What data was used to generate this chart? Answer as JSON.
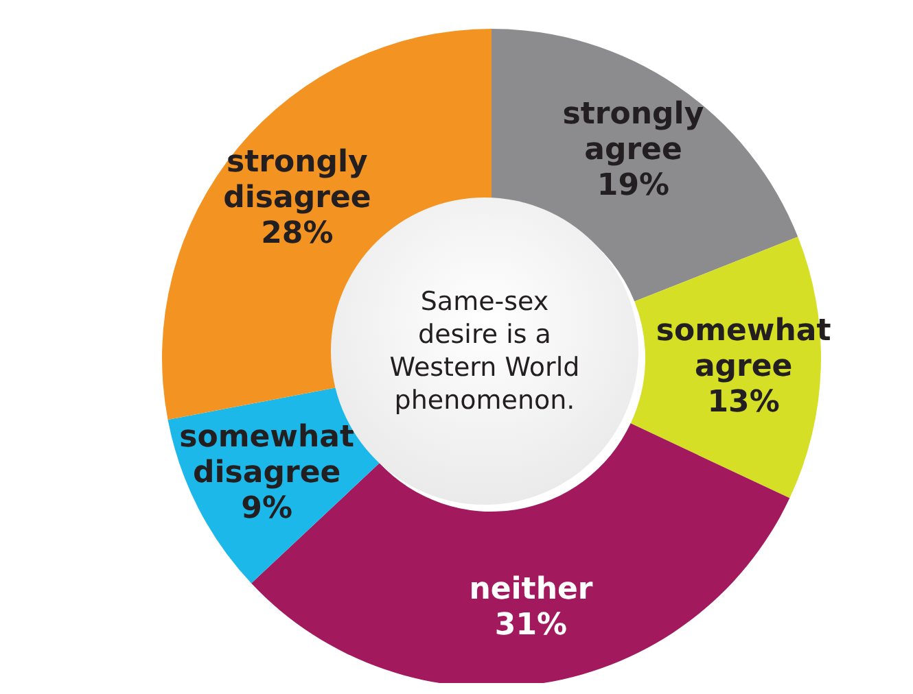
{
  "chart_data": {
    "type": "donut",
    "title": "Same-sex desire is a Western World phenomenon.",
    "categories": [
      "strongly agree",
      "somewhat agree",
      "neither",
      "somewhat disagree",
      "strongly disagree"
    ],
    "values": [
      19,
      13,
      31,
      9,
      28
    ],
    "value_labels": [
      "19%",
      "13%",
      "31%",
      "9%",
      "28%"
    ],
    "colors": [
      "#8c8c8e",
      "#d5df26",
      "#a3195e",
      "#1db8ea",
      "#f39321"
    ]
  }
}
